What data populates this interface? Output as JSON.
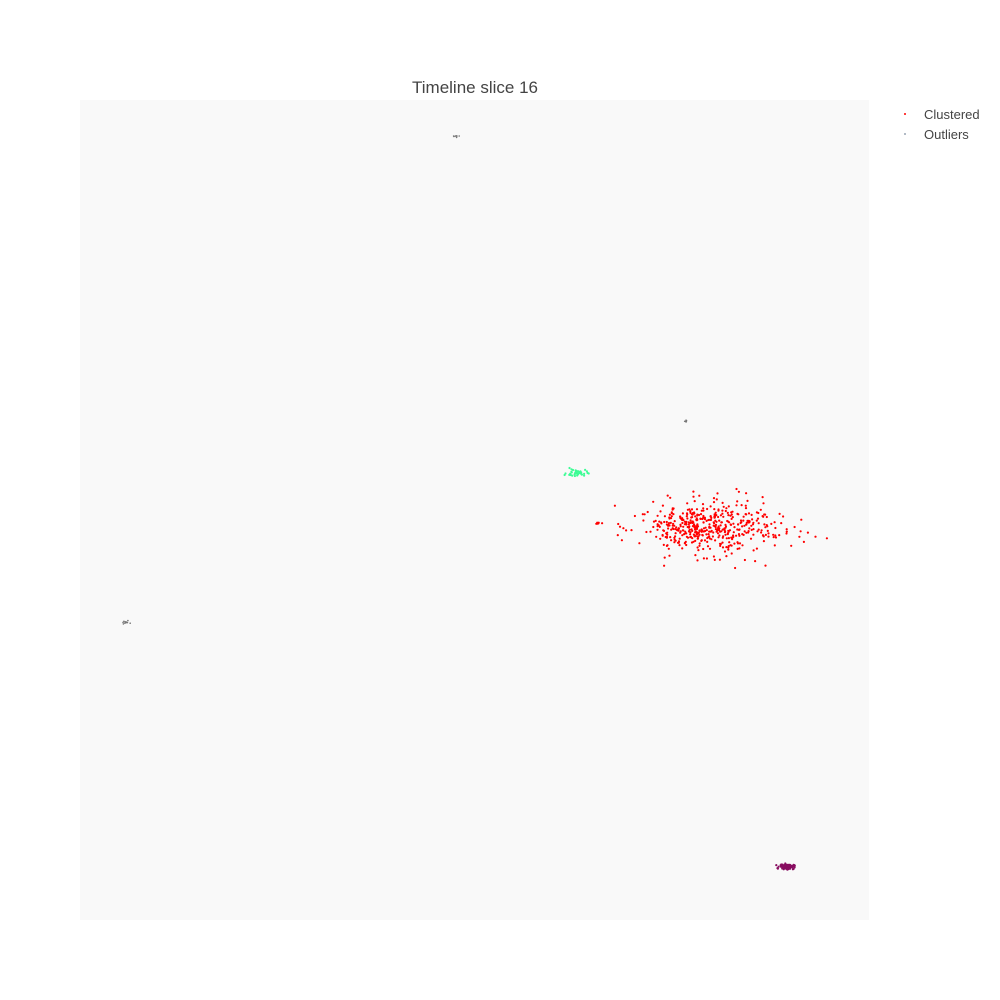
{
  "chart_data": {
    "type": "scatter",
    "title": "Timeline slice 16",
    "xlabel": "",
    "ylabel": "",
    "xlim": [
      0,
      100
    ],
    "ylim": [
      0,
      100
    ],
    "grid": false,
    "legend_position": "top-right",
    "background": "#f9f9f9",
    "legend": [
      {
        "name": "Clustered",
        "color": "#ff0000"
      },
      {
        "name": "Outliers",
        "color": "#9aa6b4"
      }
    ],
    "series": [
      {
        "name": "Clustered",
        "color": "#ff0000",
        "clusters": [
          {
            "center": [
              79.5,
              47.9
            ],
            "spread": [
              8.6,
              3.2
            ],
            "count": 520,
            "color": "#ff0000"
          },
          {
            "center": [
              63.0,
              54.5
            ],
            "spread": [
              1.3,
              0.5
            ],
            "count": 40,
            "color": "#3dfc95"
          },
          {
            "center": [
              89.6,
              6.5
            ],
            "spread": [
              0.9,
              0.3
            ],
            "count": 120,
            "color": "#880d60"
          },
          {
            "center": [
              65.6,
              48.4
            ],
            "spread": [
              0.4,
              0.1
            ],
            "count": 6,
            "color": "#ff0000"
          }
        ]
      },
      {
        "name": "Outliers",
        "color": "#777777",
        "clusters": [
          {
            "center": [
              47.6,
              95.6
            ],
            "spread": [
              0.5,
              0.3
            ],
            "count": 8,
            "color": "#777777"
          },
          {
            "center": [
              76.7,
              60.8
            ],
            "spread": [
              0.3,
              0.15
            ],
            "count": 6,
            "color": "#777777"
          },
          {
            "center": [
              5.8,
              36.3
            ],
            "spread": [
              0.4,
              0.2
            ],
            "count": 10,
            "color": "#777777"
          }
        ]
      }
    ]
  }
}
